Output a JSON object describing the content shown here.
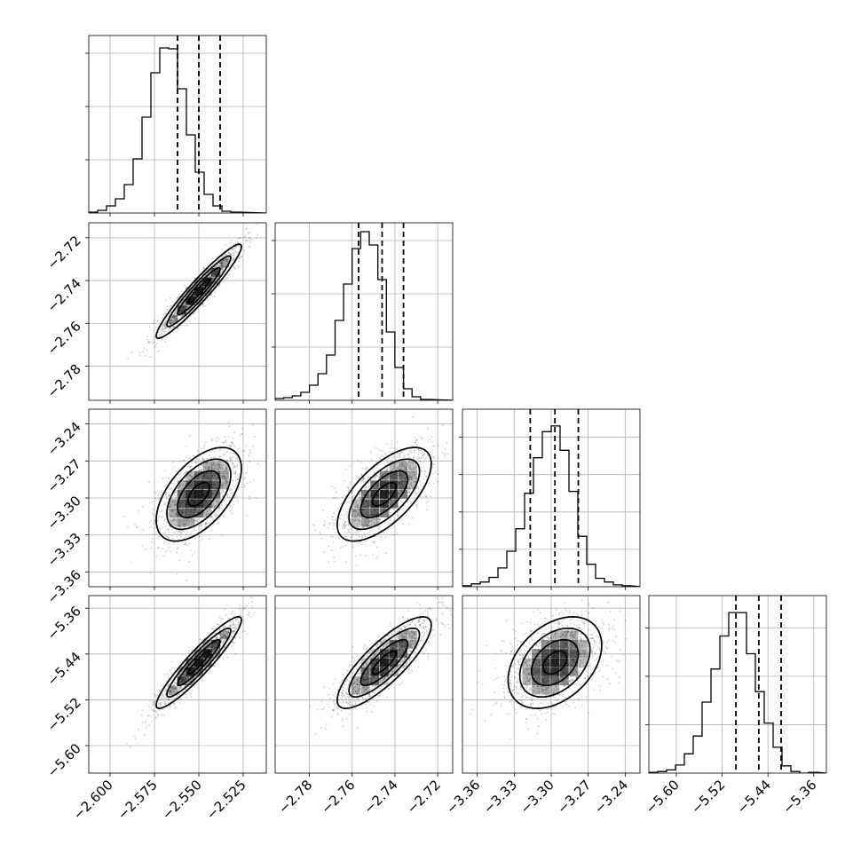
{
  "chart_data": {
    "type": "corner",
    "parameters": 4,
    "grid": true,
    "params": [
      {
        "mean": -2.55,
        "sd": 0.012,
        "range": [
          -2.612,
          -2.512
        ],
        "ticks": [
          -2.6,
          -2.575,
          -2.55,
          -2.525
        ],
        "tick_labels": [
          "−2.600",
          "−2.575",
          "−2.550",
          "−2.525"
        ],
        "quantiles": [
          -2.562,
          -2.55,
          -2.538
        ]
      },
      {
        "mean": -2.745,
        "sd": 0.011,
        "range": [
          -2.796,
          -2.713
        ],
        "ticks": [
          -2.78,
          -2.76,
          -2.74,
          -2.72
        ],
        "tick_labels": [
          "−2.78",
          "−2.76",
          "−2.74",
          "−2.72"
        ],
        "quantiles": [
          -2.757,
          -2.746,
          -2.736
        ]
      },
      {
        "mean": -3.297,
        "sd": 0.019,
        "range": [
          -3.372,
          -3.228
        ],
        "ticks": [
          -3.36,
          -3.33,
          -3.3,
          -3.27,
          -3.24
        ],
        "tick_labels": [
          "−3.36",
          "−3.33",
          "−3.30",
          "−3.27",
          "−3.24"
        ],
        "quantiles": [
          -3.317,
          -3.297,
          -3.278
        ]
      },
      {
        "mean": -5.455,
        "sd": 0.04,
        "range": [
          -5.648,
          -5.338
        ],
        "ticks": [
          -5.6,
          -5.52,
          -5.44,
          -5.36
        ],
        "tick_labels": [
          "−5.60",
          "−5.52",
          "−5.44",
          "−5.36"
        ],
        "quantiles": [
          -5.496,
          -5.456,
          -5.417
        ]
      }
    ],
    "histograms": [
      {
        "edges_from": -2.612,
        "bin": 0.005,
        "counts": [
          1,
          3,
          8,
          16,
          32,
          61,
          108,
          158,
          186,
          185,
          140,
          88,
          46,
          21,
          8,
          2,
          1
        ],
        "y_ticks": [
          60,
          120,
          180
        ],
        "ymax": 200
      },
      {
        "edges_from": -2.796,
        "bin": 0.004,
        "counts": [
          2,
          3,
          5,
          9,
          17,
          30,
          51,
          90,
          131,
          171,
          190,
          175,
          136,
          77,
          37,
          13,
          4,
          1
        ],
        "y_ticks": [
          60,
          120,
          180
        ],
        "ymax": 200
      },
      {
        "edges_from": -3.372,
        "bin": 0.0072,
        "counts": [
          1,
          3,
          5,
          10,
          20,
          38,
          62,
          100,
          138,
          166,
          172,
          146,
          102,
          54,
          24,
          9,
          5,
          2,
          1
        ],
        "y_ticks": [
          40,
          80,
          120,
          160
        ],
        "ymax": 190
      },
      {
        "edges_from": -5.648,
        "bin": 0.0155,
        "counts": [
          1,
          2,
          4,
          10,
          24,
          46,
          88,
          129,
          170,
          199,
          199,
          148,
          101,
          62,
          32,
          9,
          2,
          0,
          1
        ],
        "y_ticks": [
          60,
          120,
          180
        ],
        "ymax": 220
      }
    ],
    "correlations": {
      "1-0": 0.95,
      "2-0": 0.55,
      "2-1": 0.65,
      "3-0": 0.93,
      "3-1": 0.82,
      "3-2": 0.38
    }
  }
}
